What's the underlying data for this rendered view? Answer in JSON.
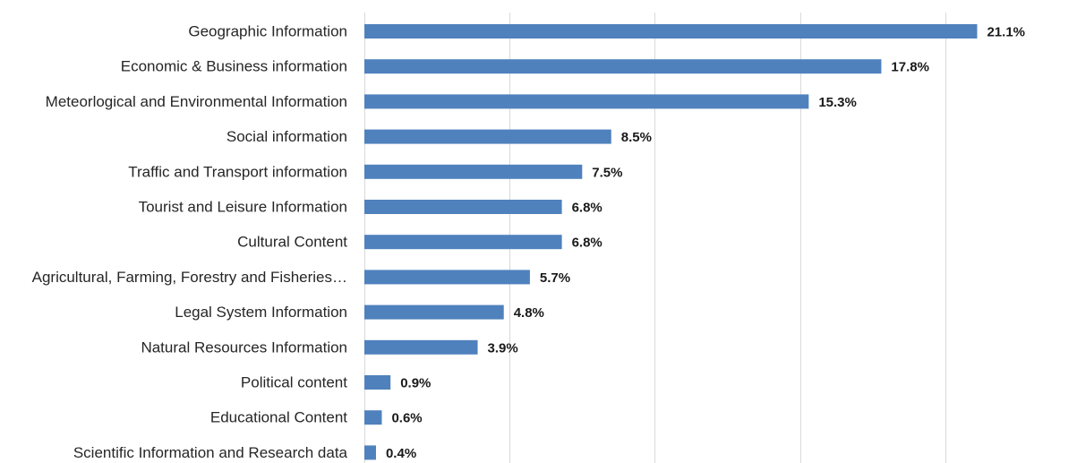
{
  "chart_data": {
    "type": "bar",
    "orientation": "horizontal",
    "categories": [
      "Geographic Information ",
      "Economic & Business information",
      "Meteorlogical and Environmental Information",
      "Social information",
      "Traffic and Transport information",
      "Tourist and Leisure Information",
      "Cultural Content",
      "Agricultural, Farming, Forestry and Fisheries…",
      "Legal System Information",
      "Natural Resources Information",
      "Political content",
      "Educational Content",
      "Scientific Information and Research data"
    ],
    "values": [
      21.1,
      17.8,
      15.3,
      8.5,
      7.5,
      6.8,
      6.8,
      5.7,
      4.8,
      3.9,
      0.9,
      0.6,
      0.4
    ],
    "value_labels": [
      "21.1%",
      "17.8%",
      "15.3%",
      "8.5%",
      "7.5%",
      "6.8%",
      "6.8%",
      "5.7%",
      "4.8%",
      "3.9%",
      "0.9%",
      "0.6%",
      "0.4%"
    ],
    "xlim": [
      0,
      25
    ],
    "xticks": [
      0,
      5,
      10,
      15,
      20,
      25
    ],
    "grid": true,
    "bar_color": "#4f81bd",
    "title": "",
    "xlabel": "",
    "ylabel": ""
  }
}
